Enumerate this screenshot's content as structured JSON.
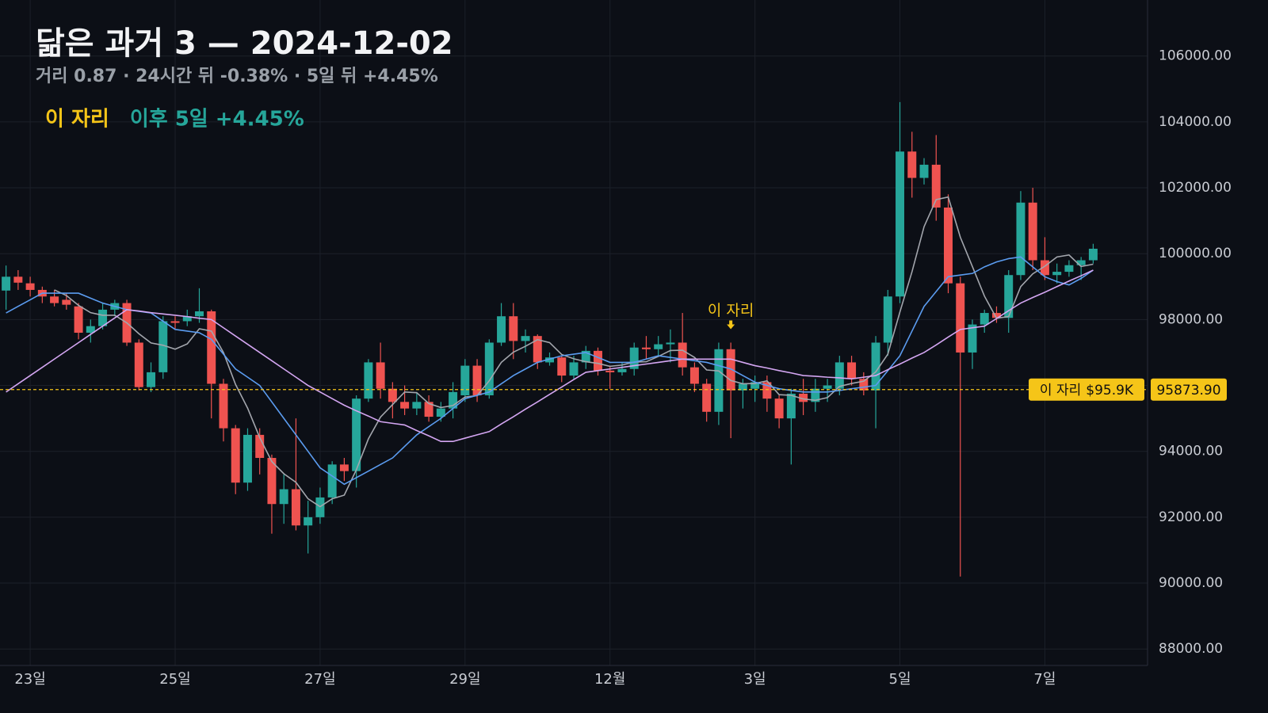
{
  "chart_data": {
    "type": "candlestick",
    "title": "닮은 과거 3 — 2024-12-02",
    "subtitle": "거리 0.87 · 24시간 뒤 -0.38% · 5일 뒤 +4.45%",
    "legend": [
      {
        "text": "이 자리",
        "color": "#f5c518"
      },
      {
        "text": "이후 5일 +4.45%",
        "color": "#26a69a"
      }
    ],
    "up_color": "#26a69a",
    "down_color": "#ef5350",
    "open": [
      98880,
      99300,
      99100,
      98900,
      98700,
      98600,
      98400,
      97600,
      97800,
      98300,
      98500,
      97300,
      95950,
      96400,
      97950,
      97950,
      98100,
      98250,
      96050,
      94700,
      93050,
      94500,
      93800,
      92400,
      92850,
      91750,
      92000,
      92600,
      93600,
      93400,
      95600,
      96700,
      95900,
      95500,
      95300,
      95500,
      95050,
      95300,
      95700,
      96600,
      95700,
      97300,
      98100,
      97350,
      97500,
      96700,
      96850,
      96300,
      96700,
      97050,
      96450,
      96400,
      96500,
      97150,
      97100,
      97250,
      97300,
      96550,
      96050,
      95200,
      97100,
      95850,
      95900,
      96100,
      95600,
      95000,
      95750,
      95500,
      95900,
      95900,
      96700,
      96200,
      95850,
      97300,
      98700,
      103100,
      102300,
      102700,
      101400,
      99100,
      97000,
      97850,
      98200,
      98050,
      99350,
      101550,
      99800,
      99350,
      99450,
      99650,
      99800
    ],
    "high": [
      99640,
      99500,
      99300,
      99000,
      98900,
      98800,
      98500,
      98000,
      98500,
      98600,
      98600,
      97400,
      96700,
      98100,
      98100,
      98300,
      98950,
      98300,
      96200,
      94800,
      94700,
      94700,
      93900,
      93300,
      95000,
      92500,
      92900,
      93700,
      93800,
      95700,
      96800,
      97300,
      96100,
      96000,
      95800,
      95700,
      95500,
      96100,
      96800,
      96800,
      97400,
      98500,
      98500,
      97700,
      97550,
      97000,
      96900,
      96900,
      97200,
      97150,
      96600,
      96700,
      97300,
      97500,
      97500,
      97700,
      98200,
      96700,
      96200,
      97300,
      97300,
      96200,
      96300,
      96300,
      95700,
      95900,
      96200,
      96200,
      96200,
      96900,
      96900,
      96400,
      97500,
      98900,
      104600,
      103700,
      102900,
      103600,
      101800,
      99300,
      98000,
      98300,
      98400,
      99500,
      101900,
      102000,
      100500,
      99700,
      99800,
      99900,
      100300
    ],
    "low": [
      98300,
      98900,
      98700,
      98500,
      98400,
      98300,
      97400,
      97300,
      97700,
      98100,
      97200,
      95850,
      95800,
      96200,
      97700,
      97800,
      97900,
      95000,
      94300,
      92700,
      92800,
      93300,
      91500,
      91800,
      91600,
      90900,
      91800,
      92400,
      93100,
      92900,
      95500,
      95600,
      95000,
      95100,
      95100,
      94900,
      94900,
      95000,
      95500,
      95500,
      95600,
      97200,
      96800,
      97000,
      96500,
      96600,
      96100,
      96200,
      96500,
      96300,
      95900,
      96300,
      96300,
      96800,
      96900,
      96700,
      96300,
      95800,
      94900,
      94800,
      94400,
      95300,
      95500,
      95200,
      94700,
      93600,
      95100,
      95200,
      95500,
      95700,
      96000,
      95700,
      94700,
      96900,
      98500,
      101700,
      102100,
      101000,
      98800,
      90200,
      96500,
      97600,
      97900,
      97600,
      99200,
      99500,
      99200,
      99100,
      99300,
      99200,
      99700
    ],
    "close": [
      99300,
      99120,
      98900,
      98700,
      98500,
      98450,
      97600,
      97800,
      98300,
      98500,
      97300,
      95950,
      96400,
      97950,
      97900,
      98100,
      98250,
      96050,
      94700,
      93050,
      94500,
      93800,
      92400,
      92850,
      91750,
      92000,
      92600,
      93600,
      93400,
      95600,
      96700,
      95900,
      95500,
      95300,
      95500,
      95050,
      95300,
      95800,
      96600,
      95700,
      97300,
      98100,
      97350,
      97500,
      96700,
      96850,
      96300,
      96700,
      97050,
      96450,
      96400,
      96500,
      97150,
      97100,
      97250,
      97300,
      96550,
      96050,
      95200,
      97100,
      95850,
      96050,
      96100,
      95600,
      95000,
      95750,
      95500,
      95900,
      96000,
      96700,
      96200,
      95850,
      97300,
      98700,
      103100,
      102300,
      102700,
      101400,
      99100,
      97000,
      97850,
      98200,
      98050,
      99350,
      101550,
      99800,
      99350,
      99450,
      99650,
      99800,
      100150
    ],
    "lines": [
      {
        "color": "#a3a6ad",
        "values": [
          null,
          null,
          null,
          null,
          98900,
          98730,
          98430,
          98210,
          98130,
          98130,
          97900,
          97570,
          97290,
          97220,
          97100,
          97260,
          97720,
          97650,
          97000,
          96030,
          95310,
          94420,
          93690,
          93320,
          93060,
          92560,
          92320,
          92560,
          92670,
          93440,
          94380,
          95040,
          95420,
          95800,
          95780,
          95450,
          95330,
          95390,
          95650,
          95690,
          96140,
          96700,
          97010,
          97190,
          97390,
          97300,
          96940,
          96810,
          96720,
          96670,
          96580,
          96620,
          96710,
          96720,
          96880,
          97060,
          97070,
          96850,
          96470,
          96440,
          96150,
          96050,
          96060,
          96140,
          95720,
          95700,
          95590,
          95550,
          95630,
          95970,
          96060,
          96130,
          96410,
          96950,
          98230,
          99450,
          100820,
          101640,
          101720,
          100500,
          99610,
          98710,
          98040,
          98090,
          99000,
          99390,
          99620,
          99900,
          99960,
          99610,
          99680
        ]
      },
      {
        "color": "#5b9cf0",
        "values": [
          98200,
          98400,
          98600,
          98800,
          98800,
          98800,
          98800,
          98650,
          98500,
          98400,
          98300,
          98250,
          98200,
          97950,
          97700,
          97650,
          97600,
          97400,
          96950,
          96500,
          96250,
          96000,
          95500,
          95000,
          94500,
          94000,
          93500,
          93250,
          93000,
          93200,
          93400,
          93600,
          93800,
          94150,
          94500,
          94750,
          95000,
          95300,
          95600,
          95700,
          95800,
          96050,
          96300,
          96500,
          96700,
          96800,
          96900,
          96950,
          97000,
          96850,
          96700,
          96700,
          96700,
          96800,
          96900,
          96850,
          96800,
          96750,
          96700,
          96600,
          96500,
          96300,
          96100,
          96000,
          95900,
          95850,
          95800,
          95800,
          95800,
          95850,
          95900,
          95950,
          96000,
          96450,
          96900,
          97650,
          98400,
          98850,
          99300,
          99350,
          99400,
          99600,
          99750,
          99850,
          99900,
          99600,
          99300,
          99150,
          99050,
          99250,
          99500
        ]
      },
      {
        "color": "#d4a6f2",
        "values": [
          95800,
          96050,
          96300,
          96550,
          96800,
          97050,
          97300,
          97550,
          97800,
          98050,
          98300,
          98260,
          98210,
          98170,
          98130,
          98090,
          98040,
          98000,
          97750,
          97500,
          97250,
          97000,
          96750,
          96500,
          96250,
          96000,
          95800,
          95600,
          95400,
          95230,
          95070,
          94900,
          94850,
          94800,
          94630,
          94470,
          94300,
          94300,
          94400,
          94500,
          94600,
          94830,
          95050,
          95280,
          95500,
          95730,
          95950,
          96180,
          96400,
          96450,
          96500,
          96550,
          96600,
          96650,
          96700,
          96750,
          96800,
          96800,
          96800,
          96800,
          96800,
          96700,
          96600,
          96530,
          96450,
          96380,
          96300,
          96280,
          96250,
          96230,
          96200,
          96250,
          96300,
          96480,
          96650,
          96830,
          97000,
          97230,
          97470,
          97700,
          97750,
          97800,
          98030,
          98270,
          98500,
          98670,
          98830,
          99000,
          99170,
          99330,
          99500
        ]
      }
    ],
    "reference_line": {
      "value": 95873.9,
      "label": "이 자리",
      "value_label": "$95.9K",
      "axis_label": "95873.90",
      "color": "#f5c518"
    },
    "annotation": {
      "text": "이 자리",
      "x": 60,
      "color": "#f5c518"
    },
    "xlim": [
      -0.5,
      94.5
    ],
    "xticks": [
      {
        "value": 2,
        "label": "23일"
      },
      {
        "value": 14,
        "label": "25일"
      },
      {
        "value": 26,
        "label": "27일"
      },
      {
        "value": 38,
        "label": "29일"
      },
      {
        "value": 50,
        "label": "12월"
      },
      {
        "value": 62,
        "label": "3일"
      },
      {
        "value": 74,
        "label": "5일"
      },
      {
        "value": 86,
        "label": "7일"
      }
    ],
    "ylim": [
      87500,
      107700
    ],
    "yticks": [
      {
        "value": 88000,
        "label": "88000.00"
      },
      {
        "value": 90000,
        "label": "90000.00"
      },
      {
        "value": 92000,
        "label": "92000.00"
      },
      {
        "value": 94000,
        "label": "94000.00"
      },
      {
        "value": 96000,
        "label": "96000.00"
      },
      {
        "value": 98000,
        "label": "98000.00"
      },
      {
        "value": 100000,
        "label": "100000.00"
      },
      {
        "value": 102000,
        "label": "102000.00"
      },
      {
        "value": 104000,
        "label": "104000.00"
      },
      {
        "value": 106000,
        "label": "106000.00"
      }
    ],
    "grid": true
  }
}
